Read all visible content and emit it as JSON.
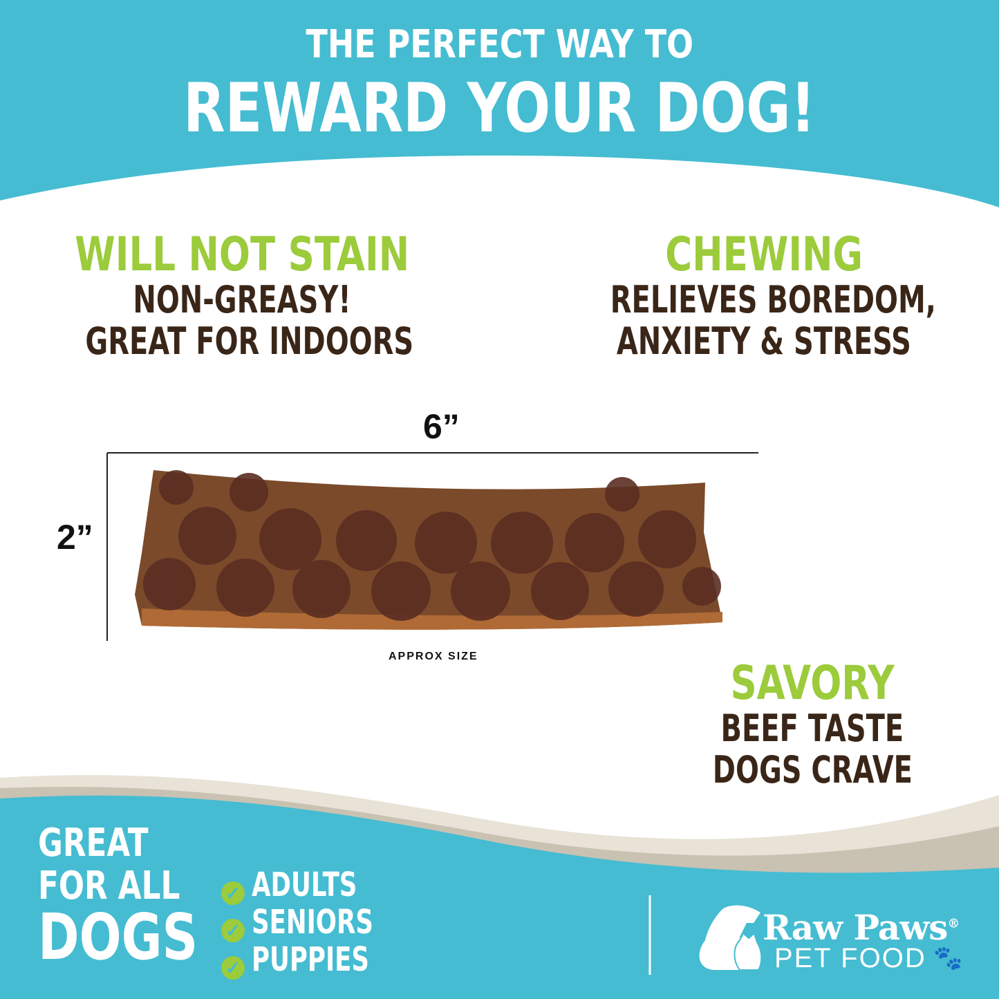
{
  "header": {
    "line1": "THE PERFECT WAY TO",
    "line2": "REWARD YOUR DOG!"
  },
  "features": [
    {
      "title": "WILL NOT STAIN",
      "lines": [
        "NON-GREASY!",
        "GREAT FOR INDOORS"
      ]
    },
    {
      "title": "CHEWING",
      "lines": [
        "RELIEVES BOREDOM,",
        "ANXIETY & STRESS"
      ]
    },
    {
      "title": "SAVORY",
      "lines": [
        "BEEF TASTE",
        "DOGS CRAVE"
      ]
    }
  ],
  "dimensions": {
    "width": "6”",
    "height": "2”",
    "caption": "APPROX SIZE"
  },
  "footer": {
    "great": "GREAT",
    "for_all": "FOR ALL",
    "dogs": "DOGS",
    "list": [
      "ADULTS",
      "SENIORS",
      "PUPPIES"
    ],
    "check_icon": "check-circle-icon"
  },
  "brand": {
    "name": "Raw Paws",
    "registered": "®",
    "sub": "PET FOOD",
    "logo_icon": "dog-and-cat-silhouette",
    "paw_icon": "paw-icon"
  },
  "colors": {
    "teal": "#45bcd2",
    "green": "#9ccb3b",
    "brown": "#3a2618",
    "sand": "#e8e3d6",
    "sand_dark": "#c9c2b2"
  }
}
